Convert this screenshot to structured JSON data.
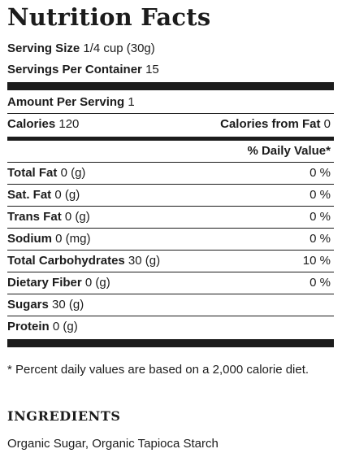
{
  "title": "Nutrition Facts",
  "serving": {
    "serving_size_label": "Serving Size",
    "serving_size_value": "1/4 cup (30g)",
    "servings_label": "Servings Per Container",
    "servings_value": "15"
  },
  "amount": {
    "label": "Amount Per Serving",
    "value": "1"
  },
  "calories": {
    "label": "Calories",
    "value": "120",
    "fat_label": "Calories from Fat",
    "fat_value": "0"
  },
  "daily_value_header": "% Daily Value*",
  "nutrients": [
    {
      "label": "Total Fat",
      "amount": "0 (g)",
      "dv": "0 %"
    },
    {
      "label": "Sat. Fat",
      "amount": "0 (g)",
      "dv": "0 %"
    },
    {
      "label": "Trans Fat",
      "amount": "0 (g)",
      "dv": "0 %"
    },
    {
      "label": "Sodium",
      "amount": "0 (mg)",
      "dv": "0 %"
    },
    {
      "label": "Total Carbohydrates",
      "amount": "30 (g)",
      "dv": "10 %"
    },
    {
      "label": "Dietary Fiber",
      "amount": "0 (g)",
      "dv": "0 %"
    },
    {
      "label": "Sugars",
      "amount": "30 (g)",
      "dv": ""
    },
    {
      "label": "Protein",
      "amount": "0 (g)",
      "dv": ""
    }
  ],
  "footnote": "* Percent daily values are based on a 2,000 calorie diet.",
  "ingredients": {
    "heading": "INGREDIENTS",
    "text": "Organic Sugar, Organic Tapioca Starch"
  }
}
